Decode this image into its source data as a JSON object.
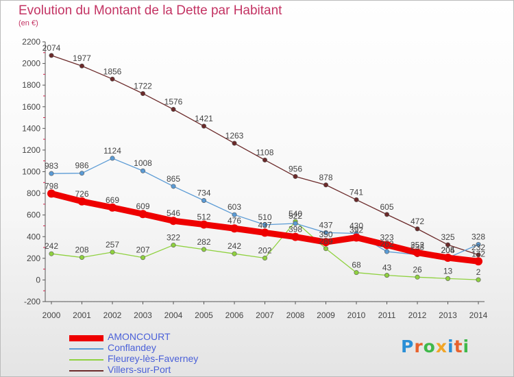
{
  "header": {
    "title": "Evolution du Montant de la Dette par Habitant",
    "subtitle": "(en €)"
  },
  "logo": {
    "text": "Proxiti",
    "colors": [
      "#2a8fd6",
      "#e8622d",
      "#3fb84a",
      "#f1a628",
      "#2a8fd6",
      "#e8622d",
      "#3fb84a"
    ]
  },
  "chart_data": {
    "type": "line",
    "title": "Evolution du Montant de la Dette par Habitant",
    "subtitle": "(en €)",
    "x": [
      2000,
      2001,
      2002,
      2003,
      2004,
      2005,
      2006,
      2007,
      2008,
      2009,
      2010,
      2011,
      2012,
      2013,
      2014
    ],
    "ylim": [
      -200,
      2200
    ],
    "yticks": [
      -200,
      0,
      200,
      400,
      600,
      800,
      1000,
      1200,
      1400,
      1600,
      1800,
      2000,
      2200
    ],
    "grid": false,
    "legend_position": "bottom-left",
    "series": [
      {
        "name": "AMONCOURT",
        "color": "#ee0000",
        "values": [
          798,
          726,
          669,
          609,
          546,
          512,
          476,
          437,
          398,
          350,
          392,
          323,
          252,
          205,
          172
        ],
        "labels": [
          "798",
          "726",
          "669",
          "609",
          "546",
          "512",
          "476",
          "437",
          "398",
          "350",
          "392",
          "323",
          "252",
          "205",
          "172"
        ]
      },
      {
        "name": "Conflandey",
        "color": "#5b9bd5",
        "values": [
          983,
          986,
          1124,
          1008,
          865,
          734,
          603,
          510,
          522,
          437,
          430,
          262,
          233,
          204,
          328
        ],
        "labels": [
          "983",
          "986",
          "1124",
          "1008",
          "865",
          "734",
          "603",
          "510",
          "522",
          "437",
          "430",
          "262",
          "233",
          "204",
          "328"
        ]
      },
      {
        "name": "Fleurey-lès-Faverney",
        "color": "#8fd13f",
        "values": [
          242,
          208,
          257,
          207,
          322,
          282,
          242,
          202,
          540,
          289,
          68,
          43,
          26,
          13,
          2
        ],
        "labels": [
          "242",
          "208",
          "257",
          "207",
          "322",
          "282",
          "242",
          "202",
          "540",
          "289",
          "68",
          "43",
          "26",
          "13",
          "2"
        ]
      },
      {
        "name": "Villers-sur-Port",
        "color": "#6b2a2a",
        "values": [
          2074,
          1977,
          1856,
          1722,
          1576,
          1421,
          1263,
          1108,
          956,
          878,
          741,
          605,
          472,
          325,
          232
        ],
        "labels": [
          "2074",
          "1977",
          "1856",
          "1722",
          "1576",
          "1421",
          "1263",
          "1108",
          "956",
          "878",
          "741",
          "605",
          "472",
          "325",
          "232"
        ]
      }
    ]
  }
}
